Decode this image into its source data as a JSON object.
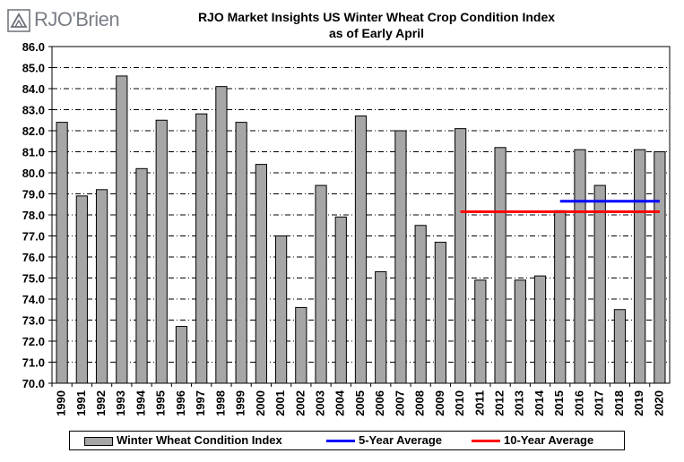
{
  "logo": {
    "text": "RJO'Brien",
    "icon": "rjo-brien-logo-mark"
  },
  "chart_data": {
    "type": "bar",
    "title": "RJO Market Insights US Winter Wheat Crop Condition Index",
    "subtitle": "as of Early April",
    "categories": [
      "1990",
      "1991",
      "1992",
      "1993",
      "1994",
      "1995",
      "1996",
      "1997",
      "1998",
      "1999",
      "2000",
      "2001",
      "2002",
      "2003",
      "2004",
      "2005",
      "2006",
      "2007",
      "2008",
      "2009",
      "2010",
      "2011",
      "2012",
      "2013",
      "2014",
      "2015",
      "2016",
      "2017",
      "2018",
      "2019",
      "2020"
    ],
    "series": [
      {
        "name": "Winter Wheat Condition Index",
        "type": "bar",
        "color": "#a6a6a6",
        "values": [
          82.4,
          78.9,
          79.2,
          84.6,
          80.2,
          82.5,
          72.7,
          82.8,
          84.1,
          82.4,
          80.4,
          77.0,
          73.6,
          79.4,
          77.9,
          82.7,
          75.3,
          82.0,
          77.5,
          76.7,
          82.1,
          74.9,
          81.2,
          74.9,
          75.1,
          78.2,
          81.1,
          79.4,
          73.5,
          81.1,
          81.0
        ]
      }
    ],
    "reference_lines": [
      {
        "name": "5-Year Average",
        "color": "#0000ff",
        "value": 78.65,
        "x_start": "2015",
        "x_end": "2020"
      },
      {
        "name": "10-Year Average",
        "color": "#ff0000",
        "value": 78.15,
        "x_start": "2010",
        "x_end": "2020"
      }
    ],
    "yticks": [
      "70.0",
      "71.0",
      "72.0",
      "73.0",
      "74.0",
      "75.0",
      "76.0",
      "77.0",
      "78.0",
      "79.0",
      "80.0",
      "81.0",
      "82.0",
      "83.0",
      "84.0",
      "85.0",
      "86.0"
    ],
    "ylim": [
      70,
      86
    ],
    "grid": true,
    "legend_position": "bottom"
  }
}
